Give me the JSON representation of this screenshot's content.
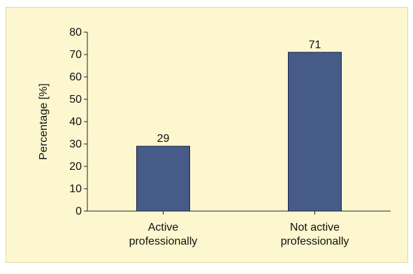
{
  "colors": {
    "background": "#fdf7cf",
    "bar": "#475b88",
    "bar_stroke": "#1b2440",
    "axis": "#222222"
  },
  "chart_data": {
    "type": "bar",
    "categories": [
      [
        "Active",
        "professionally"
      ],
      [
        "Not active",
        "professionally"
      ]
    ],
    "values": [
      29,
      71
    ],
    "data_labels": [
      "29",
      "71"
    ],
    "title": "",
    "xlabel": "",
    "ylabel": "Percentage [%]",
    "ylim": [
      0,
      80
    ],
    "yticks": [
      0,
      10,
      20,
      30,
      40,
      50,
      60,
      70,
      80
    ],
    "grid": false,
    "legend": "none"
  }
}
